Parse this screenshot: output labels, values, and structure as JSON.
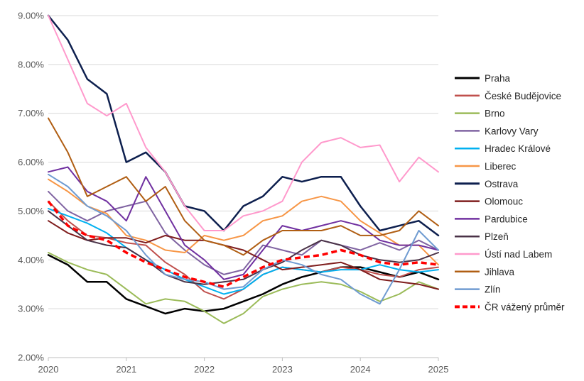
{
  "chart_data": {
    "type": "line",
    "title": "",
    "xlabel": "",
    "ylabel": "",
    "ylim": [
      2.0,
      9.0
    ],
    "xlim": [
      2020.0,
      2025.0
    ],
    "y_ticks": [
      "2.00%",
      "3.00%",
      "4.00%",
      "5.00%",
      "6.00%",
      "7.00%",
      "8.00%",
      "9.00%"
    ],
    "y_tick_values": [
      2,
      3,
      4,
      5,
      6,
      7,
      8,
      9
    ],
    "x_ticks": [
      "2020",
      "2021",
      "2022",
      "2023",
      "2024",
      "2025"
    ],
    "x_tick_values": [
      2020,
      2021,
      2022,
      2023,
      2024,
      2025
    ],
    "grid": "horizontal",
    "legend_position": "right",
    "x": [
      2020.0,
      2020.25,
      2020.5,
      2020.75,
      2021.0,
      2021.25,
      2021.5,
      2021.75,
      2022.0,
      2022.25,
      2022.5,
      2022.75,
      2023.0,
      2023.25,
      2023.5,
      2023.75,
      2024.0,
      2024.25,
      2024.5,
      2024.75,
      2025.0
    ],
    "series": [
      {
        "name": "Praha",
        "color": "#000000",
        "dash": "solid",
        "width": 2.5,
        "values": [
          4.1,
          3.9,
          3.55,
          3.55,
          3.2,
          3.05,
          2.9,
          3.0,
          2.95,
          3.0,
          3.15,
          3.3,
          3.5,
          3.65,
          3.75,
          3.85,
          3.85,
          3.75,
          3.65,
          3.75,
          3.6
        ]
      },
      {
        "name": "České Budějovice",
        "color": "#c0504d",
        "dash": "solid",
        "width": 2,
        "values": [
          5.2,
          4.8,
          4.5,
          4.45,
          4.35,
          4.3,
          3.95,
          3.7,
          3.35,
          3.2,
          3.4,
          3.7,
          3.85,
          3.8,
          3.75,
          3.85,
          3.8,
          3.7,
          3.65,
          3.8,
          3.85
        ]
      },
      {
        "name": "Brno",
        "color": "#9bbb59",
        "dash": "solid",
        "width": 2,
        "values": [
          4.15,
          3.95,
          3.8,
          3.7,
          3.4,
          3.1,
          3.2,
          3.15,
          2.95,
          2.7,
          2.9,
          3.25,
          3.4,
          3.5,
          3.55,
          3.5,
          3.35,
          3.15,
          3.3,
          3.55,
          3.4
        ]
      },
      {
        "name": "Karlovy Vary",
        "color": "#8064a2",
        "dash": "solid",
        "width": 2,
        "values": [
          5.4,
          5.0,
          4.8,
          5.0,
          5.1,
          5.2,
          4.55,
          4.2,
          3.9,
          3.7,
          3.8,
          4.3,
          4.2,
          4.1,
          4.4,
          4.3,
          4.2,
          4.35,
          4.2,
          4.4,
          4.2
        ]
      },
      {
        "name": "Hradec Králové",
        "color": "#00b0f0",
        "dash": "solid",
        "width": 2,
        "values": [
          5.05,
          4.9,
          4.75,
          4.55,
          4.25,
          4.0,
          3.8,
          3.6,
          3.45,
          3.3,
          3.4,
          3.7,
          3.85,
          3.8,
          3.75,
          3.8,
          3.8,
          3.9,
          3.8,
          3.75,
          3.8
        ]
      },
      {
        "name": "Liberec",
        "color": "#f79646",
        "dash": "solid",
        "width": 2,
        "values": [
          5.65,
          5.4,
          5.1,
          4.95,
          4.5,
          4.4,
          4.2,
          4.15,
          4.5,
          4.4,
          4.5,
          4.8,
          4.9,
          5.2,
          5.3,
          5.2,
          4.8,
          4.55,
          4.3,
          4.3,
          3.9
        ]
      },
      {
        "name": "Ostrava",
        "color": "#0d1f4e",
        "dash": "solid",
        "width": 2.5,
        "values": [
          9.0,
          8.5,
          7.7,
          7.4,
          6.0,
          6.2,
          5.8,
          5.1,
          5.0,
          4.6,
          5.1,
          5.3,
          5.7,
          5.6,
          5.7,
          5.7,
          5.1,
          4.6,
          4.7,
          4.8,
          4.5
        ]
      },
      {
        "name": "Olomouc",
        "color": "#7f1d1d",
        "dash": "solid",
        "width": 2,
        "values": [
          4.8,
          4.55,
          4.4,
          4.45,
          4.45,
          4.35,
          4.5,
          4.4,
          4.4,
          4.3,
          4.2,
          4.0,
          3.8,
          3.85,
          3.9,
          3.95,
          3.8,
          3.6,
          3.55,
          3.5,
          3.4
        ]
      },
      {
        "name": "Pardubice",
        "color": "#7030a0",
        "dash": "solid",
        "width": 2,
        "values": [
          5.8,
          5.9,
          5.4,
          5.2,
          4.8,
          5.7,
          5.0,
          4.3,
          4.0,
          3.6,
          3.7,
          4.2,
          4.7,
          4.6,
          4.7,
          4.8,
          4.7,
          4.4,
          4.3,
          4.3,
          4.2
        ]
      },
      {
        "name": "Plzeň",
        "color": "#4a3247",
        "dash": "solid",
        "width": 2,
        "values": [
          5.0,
          4.7,
          4.4,
          4.3,
          4.25,
          4.0,
          3.7,
          3.55,
          3.5,
          3.55,
          3.6,
          3.8,
          3.95,
          4.2,
          4.4,
          4.3,
          4.1,
          4.0,
          3.95,
          4.0,
          4.15
        ]
      },
      {
        "name": "Ústí nad Labem",
        "color": "#ff99cc",
        "dash": "solid",
        "width": 2,
        "values": [
          9.0,
          8.1,
          7.2,
          6.95,
          7.2,
          6.3,
          5.8,
          5.1,
          4.6,
          4.6,
          4.9,
          5.0,
          5.2,
          6.0,
          6.4,
          6.5,
          6.3,
          6.35,
          5.6,
          6.1,
          5.8
        ]
      },
      {
        "name": "Jihlava",
        "color": "#b05e13",
        "dash": "solid",
        "width": 2,
        "values": [
          6.9,
          6.2,
          5.3,
          5.5,
          5.7,
          5.2,
          5.5,
          4.8,
          4.4,
          4.3,
          4.1,
          4.4,
          4.6,
          4.6,
          4.6,
          4.7,
          4.5,
          4.5,
          4.6,
          5.0,
          4.7
        ]
      },
      {
        "name": "Zlín",
        "color": "#6f9bd1",
        "dash": "solid",
        "width": 2,
        "values": [
          5.75,
          5.5,
          5.1,
          4.9,
          4.6,
          4.1,
          3.7,
          3.6,
          3.55,
          3.4,
          3.45,
          3.8,
          4.0,
          3.9,
          3.7,
          3.6,
          3.3,
          3.1,
          3.8,
          4.6,
          4.2
        ]
      },
      {
        "name": "ČR vážený průměr",
        "color": "#ff0000",
        "dash": "dashed",
        "width": 3.5,
        "values": [
          5.2,
          4.7,
          4.5,
          4.4,
          4.15,
          3.95,
          3.8,
          3.65,
          3.55,
          3.45,
          3.65,
          3.85,
          4.0,
          4.05,
          4.1,
          4.2,
          4.1,
          3.95,
          3.9,
          3.95,
          3.9
        ]
      }
    ]
  }
}
